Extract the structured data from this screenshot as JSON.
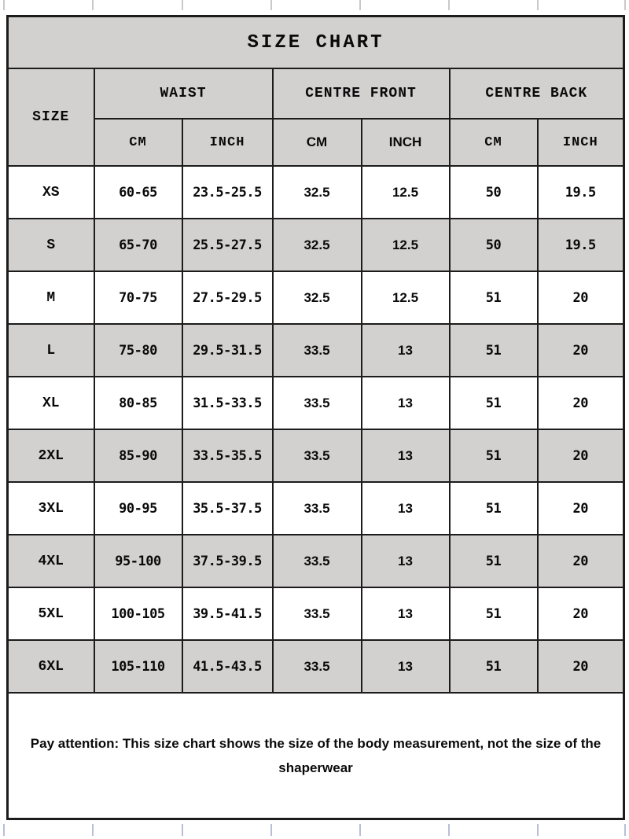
{
  "title": "SIZE CHART",
  "table": {
    "size_col_header": "SIZE",
    "groups": [
      {
        "label": "WAIST"
      },
      {
        "label": "CENTRE FRONT"
      },
      {
        "label": "CENTRE BACK"
      }
    ],
    "unit_headers": [
      "CM",
      "INCH",
      "CM",
      "INCH",
      "CM",
      "INCH"
    ],
    "rows": [
      {
        "size": "XS",
        "values": [
          "60-65",
          "23.5-25.5",
          "32.5",
          "12.5",
          "50",
          "19.5"
        ]
      },
      {
        "size": "S",
        "values": [
          "65-70",
          "25.5-27.5",
          "32.5",
          "12.5",
          "50",
          "19.5"
        ]
      },
      {
        "size": "M",
        "values": [
          "70-75",
          "27.5-29.5",
          "32.5",
          "12.5",
          "51",
          "20"
        ]
      },
      {
        "size": "L",
        "values": [
          "75-80",
          "29.5-31.5",
          "33.5",
          "13",
          "51",
          "20"
        ]
      },
      {
        "size": "XL",
        "values": [
          "80-85",
          "31.5-33.5",
          "33.5",
          "13",
          "51",
          "20"
        ]
      },
      {
        "size": "2XL",
        "values": [
          "85-90",
          "33.5-35.5",
          "33.5",
          "13",
          "51",
          "20"
        ]
      },
      {
        "size": "3XL",
        "values": [
          "90-95",
          "35.5-37.5",
          "33.5",
          "13",
          "51",
          "20"
        ]
      },
      {
        "size": "4XL",
        "values": [
          "95-100",
          "37.5-39.5",
          "33.5",
          "13",
          "51",
          "20"
        ]
      },
      {
        "size": "5XL",
        "values": [
          "100-105",
          "39.5-41.5",
          "33.5",
          "13",
          "51",
          "20"
        ]
      },
      {
        "size": "6XL",
        "values": [
          "105-110",
          "41.5-43.5",
          "33.5",
          "13",
          "51",
          "20"
        ]
      }
    ]
  },
  "note": "Pay attention:  This size chart shows the size of the body measurement,  not the size of the shaperwear",
  "colors": {
    "cell_fill_gray": "#d3d0d0",
    "border": "#1c1c1c",
    "text": "#0a0a0a",
    "grid_tick_top": "#c9c9c9",
    "grid_tick_bottom": "#b9bed6"
  }
}
